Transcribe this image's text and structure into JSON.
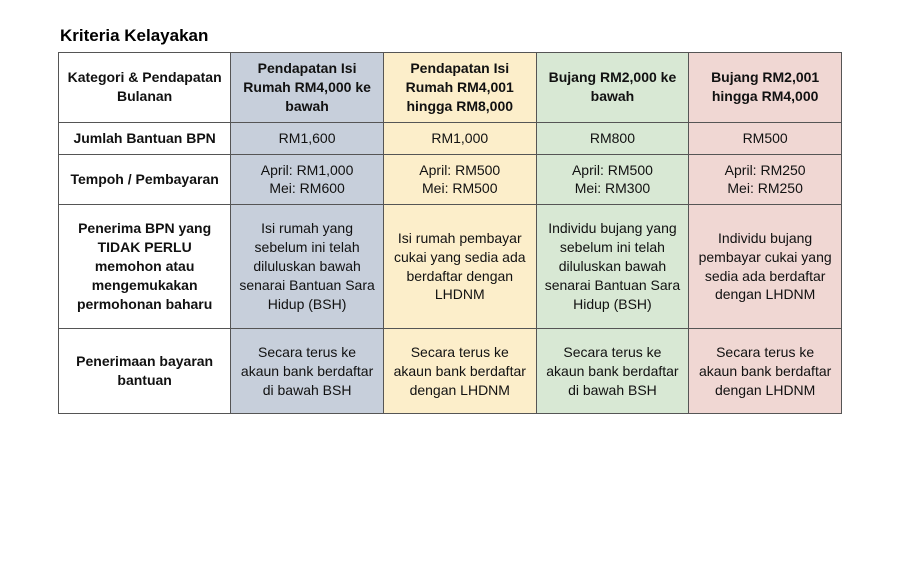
{
  "title": "Kriteria Kelayakan",
  "table": {
    "colors": {
      "col2_bg": "#c7cfdb",
      "col3_bg": "#fceeca",
      "col4_bg": "#d8e8d4",
      "col5_bg": "#f0d7d3",
      "border": "#555555",
      "text": "#111111"
    },
    "column_widths_pct": [
      22,
      19.5,
      19.5,
      19.5,
      19.5
    ],
    "header": {
      "label": "Kategori & Pendapatan Bulanan",
      "cat1": "Pendapatan Isi Rumah RM4,000 ke bawah",
      "cat2": "Pendapatan Isi Rumah RM4,001 hingga RM8,000",
      "cat3": "Bujang RM2,000 ke bawah",
      "cat4": "Bujang RM2,001 hingga RM4,000"
    },
    "rows": {
      "r1": {
        "label": "Jumlah Bantuan BPN",
        "c1": "RM1,600",
        "c2": "RM1,000",
        "c3": "RM800",
        "c4": "RM500"
      },
      "r2": {
        "label": "Tempoh / Pembayaran",
        "c1a": "April: RM1,000",
        "c1b": "Mei: RM600",
        "c2a": "April: RM500",
        "c2b": "Mei: RM500",
        "c3a": "April: RM500",
        "c3b": "Mei: RM300",
        "c4a": "April: RM250",
        "c4b": "Mei: RM250"
      },
      "r3": {
        "label": "Penerima BPN yang TIDAK PERLU memohon atau mengemukakan permohonan baharu",
        "c1": "Isi rumah yang sebelum ini telah diluluskan bawah senarai Bantuan Sara Hidup (BSH)",
        "c2": "Isi rumah pembayar cukai yang sedia ada berdaftar dengan LHDNM",
        "c3": "Individu bujang yang sebelum ini telah diluluskan bawah senarai Bantuan Sara Hidup (BSH)",
        "c4": "Individu bujang pembayar cukai yang sedia ada berdaftar dengan LHDNM"
      },
      "r4": {
        "label": "Penerimaan bayaran bantuan",
        "c1": "Secara terus ke akaun bank berdaftar di bawah BSH",
        "c2": "Secara terus ke akaun bank berdaftar dengan LHDNM",
        "c3": "Secara terus ke akaun bank berdaftar di bawah BSH",
        "c4": "Secara terus ke akaun bank berdaftar dengan LHDNM"
      }
    }
  }
}
